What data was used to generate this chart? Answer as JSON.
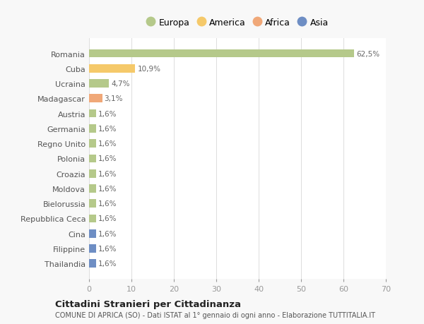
{
  "countries": [
    "Romania",
    "Cuba",
    "Ucraina",
    "Madagascar",
    "Austria",
    "Germania",
    "Regno Unito",
    "Polonia",
    "Croazia",
    "Moldova",
    "Bielorussia",
    "Repubblica Ceca",
    "Cina",
    "Filippine",
    "Thailandia"
  ],
  "values": [
    62.5,
    10.9,
    4.7,
    3.1,
    1.6,
    1.6,
    1.6,
    1.6,
    1.6,
    1.6,
    1.6,
    1.6,
    1.6,
    1.6,
    1.6
  ],
  "labels": [
    "62,5%",
    "10,9%",
    "4,7%",
    "3,1%",
    "1,6%",
    "1,6%",
    "1,6%",
    "1,6%",
    "1,6%",
    "1,6%",
    "1,6%",
    "1,6%",
    "1,6%",
    "1,6%",
    "1,6%"
  ],
  "colors": [
    "#b5c98a",
    "#f5c96a",
    "#b5c98a",
    "#f0a878",
    "#b5c98a",
    "#b5c98a",
    "#b5c98a",
    "#b5c98a",
    "#b5c98a",
    "#b5c98a",
    "#b5c98a",
    "#b5c98a",
    "#6e8ec4",
    "#6e8ec4",
    "#6e8ec4"
  ],
  "legend_labels": [
    "Europa",
    "America",
    "Africa",
    "Asia"
  ],
  "legend_colors": [
    "#b5c98a",
    "#f5c96a",
    "#f0a878",
    "#6e8ec4"
  ],
  "xlim": [
    0,
    70
  ],
  "xticks": [
    0,
    10,
    20,
    30,
    40,
    50,
    60,
    70
  ],
  "title": "Cittadini Stranieri per Cittadinanza",
  "subtitle": "COMUNE DI APRICA (SO) - Dati ISTAT al 1° gennaio di ogni anno - Elaborazione TUTTITALIA.IT",
  "bg_color": "#f8f8f8",
  "plot_bg_color": "#ffffff"
}
